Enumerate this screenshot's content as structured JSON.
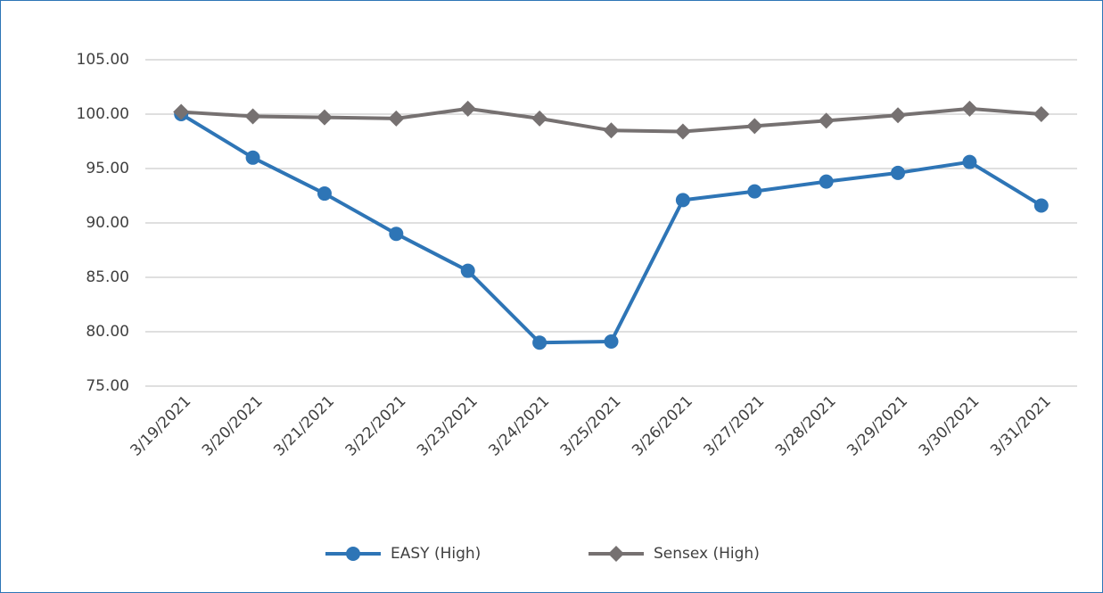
{
  "chart_data": {
    "type": "line",
    "categories": [
      "3/19/2021",
      "3/20/2021",
      "3/21/2021",
      "3/22/2021",
      "3/23/2021",
      "3/24/2021",
      "3/25/2021",
      "3/26/2021",
      "3/27/2021",
      "3/28/2021",
      "3/29/2021",
      "3/30/2021",
      "3/31/2021"
    ],
    "series": [
      {
        "name": "EASY (High)",
        "color": "#2e75b6",
        "marker": "circle",
        "values": [
          100.0,
          96.0,
          92.7,
          89.0,
          85.6,
          79.0,
          79.1,
          92.1,
          92.9,
          93.8,
          94.6,
          95.6,
          91.6
        ]
      },
      {
        "name": "Sensex (High)",
        "color": "#767171",
        "marker": "diamond",
        "values": [
          100.2,
          99.8,
          99.7,
          99.6,
          100.5,
          99.6,
          98.5,
          98.4,
          98.9,
          99.4,
          99.9,
          100.5,
          100.0
        ]
      }
    ],
    "ylim": [
      75,
      105
    ],
    "yticks": [
      {
        "value": 75,
        "label": "75.00"
      },
      {
        "value": 80,
        "label": "80.00"
      },
      {
        "value": 85,
        "label": "85.00"
      },
      {
        "value": 90,
        "label": "90.00"
      },
      {
        "value": 95,
        "label": "95.00"
      },
      {
        "value": 100,
        "label": "100.00"
      },
      {
        "value": 105,
        "label": "105.00"
      }
    ],
    "grid": true,
    "legend": "bottom"
  }
}
